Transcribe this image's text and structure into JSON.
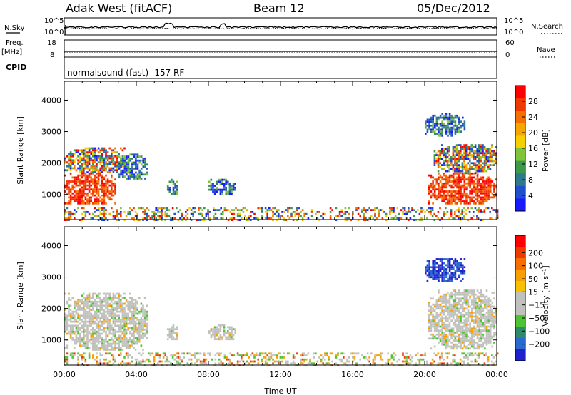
{
  "header": {
    "station": "Adak West (fitACF)",
    "beam": "Beam 12",
    "date": "05/Dec/2012"
  },
  "mode_text": "normalsound (fast) -157 RF",
  "side_labels": {
    "nsky": "N.Sky",
    "nsearch": "N.Search",
    "freq_line1": "Freq.",
    "freq_line2": "[MHz]",
    "nave": "Nave",
    "cpid": "CPID"
  },
  "noise_axis": {
    "left_top": "10^5",
    "left_bottom": "10^0",
    "right_top": "10^5",
    "right_bottom": "10^0"
  },
  "freq_axis": {
    "left_top": "18",
    "left_bottom": "8",
    "right_top": "60",
    "right_bottom": "0"
  },
  "chart_data": [
    {
      "type": "heatmap",
      "name": "power",
      "ylabel": "Slant Range [km]",
      "xlabel": "",
      "ylim": [
        200,
        4600
      ],
      "y_ticks": [
        "1000",
        "2000",
        "3000",
        "4000"
      ],
      "colorbar": {
        "label": "Power [dB]",
        "range": [
          0,
          32
        ],
        "ticks": [
          "4",
          "8",
          "12",
          "16",
          "20",
          "24",
          "28"
        ],
        "colors": [
          "#1a1aff",
          "#1f4fcc",
          "#2f7a8a",
          "#3c9a4a",
          "#7fc43a",
          "#f5d000",
          "#f7a500",
          "#f57000",
          "#ee3a00",
          "#ff0000"
        ]
      },
      "regions": [
        {
          "t": [
            0.0,
            2.8
          ],
          "r": [
            700,
            1700
          ],
          "level": "high"
        },
        {
          "t": [
            0.0,
            3.3
          ],
          "r": [
            1700,
            2500
          ],
          "level": "mid"
        },
        {
          "t": [
            3.0,
            4.6
          ],
          "r": [
            1500,
            2300
          ],
          "level": "low"
        },
        {
          "t": [
            5.7,
            6.3
          ],
          "r": [
            1000,
            1500
          ],
          "level": "low"
        },
        {
          "t": [
            8.0,
            9.5
          ],
          "r": [
            1000,
            1500
          ],
          "level": "low"
        },
        {
          "t": [
            0.0,
            24.0
          ],
          "r": [
            200,
            600
          ],
          "level": "scatter"
        },
        {
          "t": [
            20.2,
            24.0
          ],
          "r": [
            700,
            1700
          ],
          "level": "high"
        },
        {
          "t": [
            20.5,
            24.0
          ],
          "r": [
            1700,
            2600
          ],
          "level": "mid"
        },
        {
          "t": [
            20.0,
            22.2
          ],
          "r": [
            2900,
            3600
          ],
          "level": "low"
        }
      ]
    },
    {
      "type": "heatmap",
      "name": "velocity",
      "ylabel": "Slant Range [km]",
      "xlabel": "Time UT",
      "ylim": [
        200,
        4600
      ],
      "y_ticks": [
        "1000",
        "2000",
        "3000",
        "4000"
      ],
      "x_ticks": [
        "00:00",
        "04:00",
        "08:00",
        "12:00",
        "16:00",
        "20:00",
        "00:00"
      ],
      "colorbar": {
        "label": "Velocity [m s⁻¹]",
        "ticks": [
          "200",
          "100",
          "50",
          "15",
          "−15",
          "−50",
          "−100",
          "−200"
        ],
        "colors": [
          "#2020cc",
          "#2a6ad0",
          "#2f8a6a",
          "#4cc433",
          "#c0c0bc",
          "#c0c0bc",
          "#f7c000",
          "#f7a000",
          "#f57000",
          "#ee3a00",
          "#ff0000"
        ]
      },
      "regions": [
        {
          "t": [
            0.0,
            4.6
          ],
          "r": [
            700,
            2500
          ],
          "level": "grey"
        },
        {
          "t": [
            5.7,
            6.3
          ],
          "r": [
            1000,
            1500
          ],
          "level": "grey"
        },
        {
          "t": [
            8.0,
            9.5
          ],
          "r": [
            1000,
            1500
          ],
          "level": "grey"
        },
        {
          "t": [
            0.0,
            24.0
          ],
          "r": [
            200,
            600
          ],
          "level": "scatter"
        },
        {
          "t": [
            20.2,
            24.0
          ],
          "r": [
            700,
            2600
          ],
          "level": "grey"
        },
        {
          "t": [
            20.0,
            22.2
          ],
          "r": [
            2900,
            3600
          ],
          "level": "blue"
        }
      ]
    }
  ],
  "time_range_hours": [
    0,
    24
  ]
}
